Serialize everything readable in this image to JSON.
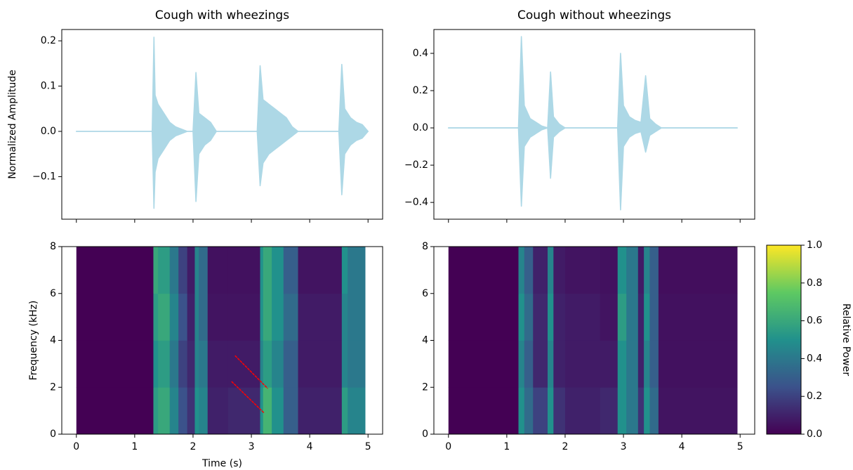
{
  "chart_data": [
    {
      "type": "waveform",
      "title": "Cough with wheezings",
      "ylabel": "Normalized Amplitude",
      "xlim": [
        -0.25,
        5.25
      ],
      "ylim": [
        -0.194,
        0.225
      ],
      "xticks": [
        0,
        1,
        2,
        3,
        4,
        5
      ],
      "show_xtick_labels": false,
      "yticks": [
        {
          "value": -0.1,
          "label": "−0.1"
        },
        {
          "value": 0,
          "label": "0.0"
        },
        {
          "value": 0.1,
          "label": "0.1"
        },
        {
          "value": 0.2,
          "label": "0.2"
        }
      ],
      "x": [
        0,
        1.3,
        1.33,
        1.35,
        1.4,
        1.5,
        1.6,
        1.7,
        1.8,
        1.9,
        2.0,
        2.05,
        2.1,
        2.2,
        2.3,
        2.4,
        3.1,
        3.15,
        3.2,
        3.3,
        3.4,
        3.5,
        3.6,
        3.7,
        3.8,
        4.5,
        4.55,
        4.6,
        4.7,
        4.8,
        4.9,
        5.0
      ],
      "series": [
        {
          "color": "#add8e6",
          "values": [
            0,
            0,
            0.208,
            0.08,
            0.06,
            0.04,
            0.02,
            0.01,
            0.005,
            0,
            0,
            0.13,
            0.04,
            0.03,
            0.02,
            0,
            0,
            0.145,
            0.07,
            0.06,
            0.05,
            0.04,
            0.03,
            0.01,
            0,
            0,
            0.148,
            0.05,
            0.03,
            0.02,
            0.015,
            0
          ]
        },
        {
          "color": "#add8e6",
          "values": [
            0,
            0,
            -0.17,
            -0.09,
            -0.06,
            -0.04,
            -0.02,
            -0.01,
            -0.005,
            0,
            0,
            -0.155,
            -0.05,
            -0.03,
            -0.02,
            0,
            0,
            -0.12,
            -0.07,
            -0.05,
            -0.04,
            -0.03,
            -0.02,
            -0.01,
            0,
            0,
            -0.14,
            -0.05,
            -0.03,
            -0.02,
            -0.015,
            0
          ]
        }
      ]
    },
    {
      "type": "waveform",
      "title": "Cough without wheezings",
      "xlim": [
        -0.25,
        5.25
      ],
      "ylim": [
        -0.49,
        0.528
      ],
      "xticks": [
        0,
        1,
        2,
        3,
        4,
        5
      ],
      "show_xtick_labels": false,
      "yticks": [
        {
          "value": -0.4,
          "label": "−0.4"
        },
        {
          "value": -0.2,
          "label": "−0.2"
        },
        {
          "value": 0,
          "label": "0.0"
        },
        {
          "value": 0.2,
          "label": "0.2"
        },
        {
          "value": 0.4,
          "label": "0.4"
        }
      ],
      "x": [
        0,
        1.2,
        1.25,
        1.3,
        1.4,
        1.5,
        1.6,
        1.7,
        1.75,
        1.8,
        1.9,
        2.0,
        2.9,
        2.95,
        3.0,
        3.1,
        3.2,
        3.3,
        3.38,
        3.45,
        3.55,
        3.65,
        4.95
      ],
      "series": [
        {
          "color": "#add8e6",
          "values": [
            0,
            0,
            0.49,
            0.12,
            0.05,
            0.03,
            0.01,
            0,
            0.3,
            0.06,
            0.02,
            0,
            0,
            0.4,
            0.12,
            0.06,
            0.04,
            0.03,
            0.28,
            0.05,
            0.02,
            0,
            0
          ]
        },
        {
          "color": "#add8e6",
          "values": [
            0,
            0,
            -0.42,
            -0.1,
            -0.05,
            -0.03,
            -0.01,
            0,
            -0.27,
            -0.05,
            -0.02,
            0,
            0,
            -0.44,
            -0.1,
            -0.05,
            -0.03,
            -0.02,
            -0.13,
            -0.04,
            -0.02,
            0,
            0
          ]
        }
      ]
    },
    {
      "type": "spectrogram",
      "xlabel": "Time (s)",
      "ylabel": "Frequency (kHz)",
      "xlim": [
        -0.25,
        5.25
      ],
      "ylim": [
        0,
        8
      ],
      "xticks": [
        0,
        1,
        2,
        3,
        4,
        5
      ],
      "yticks": [
        0,
        2,
        4,
        6,
        8
      ],
      "colormap": [
        "#440154",
        "#3b528b",
        "#21918c",
        "#5ec962",
        "#fde725"
      ],
      "x_edges": [
        0,
        1.32,
        1.4,
        1.6,
        1.75,
        1.9,
        2.03,
        2.1,
        2.25,
        2.6,
        3.15,
        3.2,
        3.35,
        3.55,
        3.8,
        4.55,
        4.65,
        4.95
      ],
      "y_edges": [
        0,
        2,
        4,
        6,
        8
      ],
      "values": [
        [
          0,
          0.55,
          0.6,
          0.45,
          0.25,
          0.15,
          0.5,
          0.45,
          0.1,
          0.12,
          0.5,
          0.65,
          0.5,
          0.3,
          0.1,
          0.55,
          0.45
        ],
        [
          0,
          0.5,
          0.55,
          0.4,
          0.2,
          0.12,
          0.45,
          0.4,
          0.08,
          0.08,
          0.45,
          0.55,
          0.45,
          0.3,
          0.08,
          0.45,
          0.4
        ],
        [
          0,
          0.55,
          0.6,
          0.45,
          0.25,
          0.1,
          0.45,
          0.35,
          0.06,
          0.06,
          0.5,
          0.6,
          0.5,
          0.35,
          0.08,
          0.45,
          0.4
        ],
        [
          0,
          0.6,
          0.55,
          0.4,
          0.2,
          0.08,
          0.45,
          0.35,
          0.05,
          0.05,
          0.5,
          0.6,
          0.5,
          0.3,
          0.06,
          0.5,
          0.4
        ]
      ],
      "lines": [
        {
          "color": "#ff0000",
          "x": [
            2.72,
            3.28
          ],
          "y": [
            3.35,
            1.95
          ]
        },
        {
          "color": "#ff0000",
          "x": [
            2.66,
            3.22
          ],
          "y": [
            2.25,
            0.9
          ]
        }
      ]
    },
    {
      "type": "spectrogram",
      "xlim": [
        -0.25,
        5.25
      ],
      "ylim": [
        0,
        8
      ],
      "xticks": [
        0,
        1,
        2,
        3,
        4,
        5
      ],
      "yticks": [
        0,
        2,
        4,
        6,
        8
      ],
      "colormap": [
        "#440154",
        "#3b528b",
        "#21918c",
        "#5ec962",
        "#fde725"
      ],
      "x_edges": [
        0,
        1.2,
        1.3,
        1.45,
        1.7,
        1.8,
        2.0,
        2.6,
        2.9,
        3.05,
        3.25,
        3.35,
        3.45,
        3.6,
        4.95
      ],
      "y_edges": [
        0,
        2,
        4,
        6,
        8
      ],
      "values": [
        [
          0,
          0.5,
          0.35,
          0.2,
          0.5,
          0.15,
          0.1,
          0.12,
          0.5,
          0.4,
          0.15,
          0.5,
          0.35,
          0.06
        ],
        [
          0,
          0.45,
          0.3,
          0.12,
          0.45,
          0.1,
          0.08,
          0.08,
          0.5,
          0.4,
          0.1,
          0.45,
          0.3,
          0.05
        ],
        [
          0,
          0.5,
          0.35,
          0.12,
          0.5,
          0.1,
          0.08,
          0.06,
          0.55,
          0.4,
          0.1,
          0.5,
          0.3,
          0.05
        ],
        [
          0,
          0.45,
          0.3,
          0.1,
          0.45,
          0.08,
          0.06,
          0.05,
          0.5,
          0.4,
          0.08,
          0.45,
          0.3,
          0.04
        ]
      ],
      "colorbar": {
        "label": "Relative Power",
        "lim": [
          0,
          1
        ],
        "ticks": [
          {
            "value": 0,
            "label": "0.0"
          },
          {
            "value": 0.2,
            "label": "0.2"
          },
          {
            "value": 0.4,
            "label": "0.4"
          },
          {
            "value": 0.6,
            "label": "0.6"
          },
          {
            "value": 0.8,
            "label": "0.8"
          },
          {
            "value": 1,
            "label": "1.0"
          }
        ]
      }
    }
  ]
}
